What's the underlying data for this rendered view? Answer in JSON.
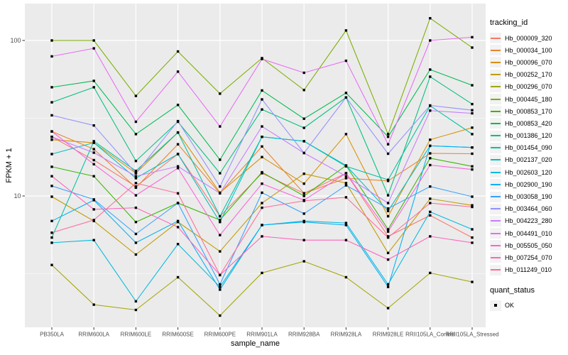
{
  "figure": {
    "background": "#FFFFFF",
    "panel_background": "#EBEBEB",
    "grid_color": "#FFFFFF",
    "axis_text_color": "#4D4D4D",
    "tick_color": "#333333",
    "point_color": "#000000"
  },
  "chart_data": {
    "type": "line",
    "title": "",
    "xlabel": "sample_name",
    "ylabel": "FPKM + 1",
    "yscale": "log10",
    "ylim": [
      1.4,
      170
    ],
    "yticks_major": [
      100,
      10
    ],
    "yticks_minor": [
      31.623,
      3.162
    ],
    "grid": true,
    "legend_position": "right",
    "marker": {
      "shape": "square",
      "color": "#000000",
      "size": 3.4
    },
    "categories": [
      "PB350LA",
      "RRIM600LA",
      "RRIM600LE",
      "RRIM600SE",
      "RRIM600PE",
      "RRIM901LA",
      "RRIM928BA",
      "RRIM928LA",
      "RRIM928LE",
      "RRII105LA_Control",
      "RRII105LA_Stressed"
    ],
    "series": [
      {
        "name": "Hb_000009_320",
        "color": "#F8766D",
        "values": [
          24,
          17,
          11.5,
          18.6,
          7.4,
          14,
          10.4,
          14,
          5.5,
          7.5,
          5.4
        ]
      },
      {
        "name": "Hb_000034_100",
        "color": "#EA8331",
        "values": [
          26,
          20,
          11.3,
          21.5,
          10.4,
          20.8,
          10.4,
          13,
          12.5,
          18.8,
          18.7
        ]
      },
      {
        "name": "Hb_000096_070",
        "color": "#D89000",
        "values": [
          23,
          22,
          14,
          25.6,
          10.5,
          17.8,
          12,
          25,
          7.4,
          23,
          27.5
        ]
      },
      {
        "name": "Hb_000252_170",
        "color": "#C09B00",
        "values": [
          9.9,
          6.9,
          4.2,
          6.8,
          4.4,
          9,
          13.9,
          12.1,
          4.3,
          9.6,
          8.7
        ]
      },
      {
        "name": "Hb_000296_070",
        "color": "#A3A500",
        "values": [
          3.6,
          2.0,
          1.85,
          3.0,
          1.7,
          3.2,
          3.8,
          3.0,
          1.9,
          3.2,
          2.8
        ]
      },
      {
        "name": "Hb_000445_180",
        "color": "#7CAE00",
        "values": [
          100,
          100,
          44,
          85,
          45.5,
          77,
          48,
          116,
          25,
          139,
          90
        ]
      },
      {
        "name": "Hb_000853_170",
        "color": "#39B600",
        "values": [
          15.4,
          13.4,
          6.8,
          9.0,
          7.0,
          14.2,
          10,
          15.7,
          6.1,
          17.5,
          15.5
        ]
      },
      {
        "name": "Hb_000853_420",
        "color": "#00BB4E",
        "values": [
          50,
          55,
          25,
          38.5,
          17.1,
          47.7,
          31.4,
          46,
          24,
          65,
          51.5
        ]
      },
      {
        "name": "Hb_001386_120",
        "color": "#00BF7D",
        "values": [
          40,
          50,
          16.8,
          30,
          14,
          36,
          27.4,
          43,
          10.1,
          58.5,
          39
        ]
      },
      {
        "name": "Hb_001454_090",
        "color": "#00C1A3",
        "values": [
          5.4,
          22.5,
          14.5,
          25.6,
          7.4,
          24,
          22.5,
          15.5,
          12.7,
          38,
          25
        ]
      },
      {
        "name": "Hb_002137_020",
        "color": "#00BFC4",
        "values": [
          18.6,
          22,
          13,
          18.6,
          6.8,
          24,
          22.5,
          15.7,
          8,
          21,
          20.5
        ]
      },
      {
        "name": "Hb_002603_120",
        "color": "#00BAE0",
        "values": [
          5.0,
          5.2,
          2.1,
          4.9,
          2.6,
          6.5,
          6.9,
          6.7,
          2.7,
          7.9,
          6.1
        ]
      },
      {
        "name": "Hb_002900_190",
        "color": "#00B0F6",
        "values": [
          6.9,
          9.4,
          5.0,
          6.9,
          2.5,
          6.5,
          6.8,
          6.5,
          2.6,
          21,
          20.5
        ]
      },
      {
        "name": "Hb_003058_190",
        "color": "#35A2FF",
        "values": [
          11.6,
          9.5,
          5.7,
          9.0,
          2.7,
          10.5,
          7.7,
          11.7,
          8.3,
          11.5,
          9.9
        ]
      },
      {
        "name": "Hb_003464_060",
        "color": "#9590FF",
        "values": [
          33,
          28.4,
          14,
          30.3,
          11.5,
          41.8,
          18.9,
          43,
          18.7,
          38.2,
          35.6
        ]
      },
      {
        "name": "Hb_004223_280",
        "color": "#C77CFF",
        "values": [
          24,
          19,
          13.4,
          15.5,
          10.4,
          28,
          18.9,
          13.4,
          9.0,
          35.4,
          34
        ]
      },
      {
        "name": "Hb_004491_010",
        "color": "#E76BF3",
        "values": [
          79,
          89,
          30,
          63,
          28,
          76,
          62,
          74,
          21.5,
          100,
          105
        ]
      },
      {
        "name": "Hb_005505_050",
        "color": "#FA62DB",
        "values": [
          26,
          16,
          10.1,
          15.1,
          5.6,
          12,
          9.4,
          14,
          5.9,
          15.8,
          14.8
        ]
      },
      {
        "name": "Hb_007254_070",
        "color": "#FF62BC",
        "values": [
          13.4,
          8.2,
          8.4,
          6.3,
          3.1,
          5.5,
          5.2,
          5.2,
          3.9,
          5.5,
          5.0
        ]
      },
      {
        "name": "Hb_011249_010",
        "color": "#FF6A98",
        "values": [
          5.8,
          7.0,
          12.1,
          10.4,
          3.1,
          8.4,
          9.3,
          9.8,
          5.4,
          9.0,
          8.5
        ]
      }
    ],
    "legends": {
      "tracking": {
        "title": "tracking_id"
      },
      "quant": {
        "title": "quant_status",
        "items": [
          {
            "label": "OK"
          }
        ],
        "marker_color": "#000000"
      }
    }
  }
}
